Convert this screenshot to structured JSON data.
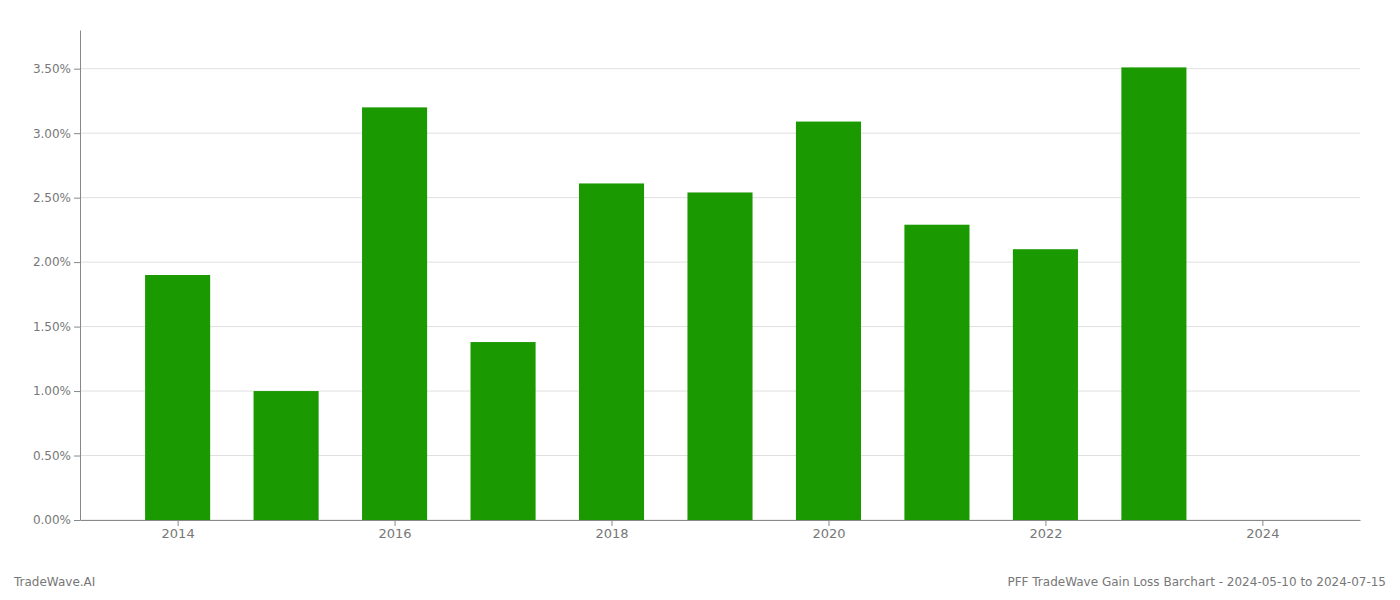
{
  "chart_data": {
    "type": "bar",
    "x": [
      2014,
      2015,
      2016,
      2017,
      2018,
      2019,
      2020,
      2021,
      2022,
      2023
    ],
    "values": [
      0.019,
      0.01,
      0.032,
      0.0138,
      0.0261,
      0.0254,
      0.0309,
      0.0229,
      0.021,
      0.0351
    ],
    "color": "#1a9a00",
    "xlim": [
      2013.1,
      2024.9
    ],
    "xticks": [
      2014,
      2016,
      2018,
      2020,
      2022,
      2024
    ],
    "ylim": [
      0,
      0.038
    ],
    "yticks": [
      {
        "value": 0.0,
        "label": "0.00%"
      },
      {
        "value": 0.005,
        "label": "0.50%"
      },
      {
        "value": 0.01,
        "label": "1.00%"
      },
      {
        "value": 0.015,
        "label": "1.50%"
      },
      {
        "value": 0.02,
        "label": "2.00%"
      },
      {
        "value": 0.025,
        "label": "2.50%"
      },
      {
        "value": 0.03,
        "label": "3.00%"
      },
      {
        "value": 0.035,
        "label": "3.50%"
      }
    ],
    "grid": true,
    "annotations": [
      "TradeWave.AI",
      "PFF TradeWave Gain Loss Barchart - 2024-05-10 to 2024-07-15"
    ]
  }
}
